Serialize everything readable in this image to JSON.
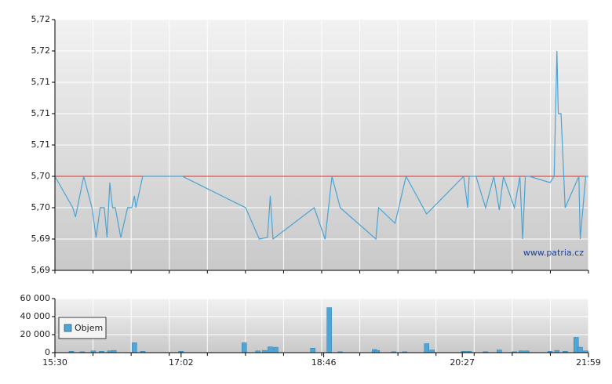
{
  "chart_data": [
    {
      "type": "line",
      "annotation": "www.patria.cz",
      "x": [
        "15:30",
        "15:43",
        "15:45",
        "15:51",
        "15:57",
        "16:00",
        "16:03",
        "16:06",
        "16:08",
        "16:10",
        "16:12",
        "16:14",
        "16:18",
        "16:23",
        "16:26",
        "16:28",
        "16:29",
        "16:34",
        "17:03",
        "17:49",
        "17:59",
        "18:05",
        "18:07",
        "18:09",
        "18:39",
        "18:47",
        "18:52",
        "18:58",
        "19:24",
        "19:26",
        "19:38",
        "19:46",
        "20:01",
        "20:28",
        "20:31",
        "20:32",
        "20:37",
        "20:44",
        "20:50",
        "20:54",
        "20:57",
        "21:05",
        "21:09",
        "21:11",
        "21:13",
        "21:16",
        "21:31",
        "21:34",
        "21:36",
        "21:37",
        "21:39",
        "21:42",
        "21:52",
        "21:53",
        "21:57",
        "21:59"
      ],
      "series": [
        {
          "color": "#4aa3d3",
          "values": [
            5.702,
            5.698,
            5.6968,
            5.702,
            5.698,
            5.6942,
            5.698,
            5.698,
            5.6942,
            5.7012,
            5.698,
            5.698,
            5.6942,
            5.698,
            5.698,
            5.6995,
            5.698,
            5.702,
            5.702,
            5.698,
            5.694,
            5.6942,
            5.6995,
            5.694,
            5.698,
            5.694,
            5.702,
            5.698,
            5.694,
            5.698,
            5.696,
            5.702,
            5.6972,
            5.702,
            5.698,
            5.702,
            5.702,
            5.698,
            5.702,
            5.6977,
            5.702,
            5.698,
            5.702,
            5.694,
            5.702,
            5.702,
            5.7012,
            5.702,
            5.718,
            5.71,
            5.71,
            5.698,
            5.702,
            5.694,
            5.702,
            5.702
          ]
        }
      ],
      "reference_line": 5.702,
      "reference_color": "#e03030",
      "xlim": [
        "15:30",
        "21:59"
      ],
      "ylim": [
        5.69,
        5.722
      ],
      "yticks": [
        {
          "value": 5.69,
          "label": "5,69"
        },
        {
          "value": 5.694,
          "label": "5,69"
        },
        {
          "value": 5.698,
          "label": "5,70"
        },
        {
          "value": 5.702,
          "label": "5,70"
        },
        {
          "value": 5.706,
          "label": "5,71"
        },
        {
          "value": 5.71,
          "label": "5,71"
        },
        {
          "value": 5.714,
          "label": "5,71"
        },
        {
          "value": 5.718,
          "label": "5,72"
        },
        {
          "value": 5.722,
          "label": "5,72"
        }
      ],
      "grid": true
    },
    {
      "type": "bar",
      "legend": "top-left",
      "x": [
        "15:42",
        "15:50",
        "15:58",
        "16:04",
        "16:10",
        "16:13",
        "16:28",
        "16:34",
        "17:02",
        "17:48",
        "17:58",
        "18:03",
        "18:07",
        "18:11",
        "18:38",
        "18:50",
        "18:58",
        "19:23",
        "19:25",
        "19:37",
        "19:45",
        "20:01",
        "20:05",
        "20:28",
        "20:32",
        "20:44",
        "20:54",
        "21:05",
        "21:10",
        "21:14",
        "21:31",
        "21:36",
        "21:42",
        "21:50",
        "21:53",
        "21:57"
      ],
      "series": [
        {
          "name": "Objem",
          "color": "#4da6d8",
          "values": [
            1500,
            1000,
            2000,
            1500,
            2000,
            2500,
            11000,
            1500,
            1500,
            11000,
            2000,
            2500,
            6500,
            6000,
            5000,
            50000,
            1000,
            3500,
            2500,
            1000,
            1000,
            10000,
            3000,
            1500,
            1500,
            1000,
            3000,
            1000,
            2000,
            2000,
            1500,
            2500,
            1500,
            17000,
            6000,
            2000
          ]
        }
      ],
      "xlim": [
        "15:30",
        "21:59"
      ],
      "xticks": [
        "15:30",
        "17:02",
        "18:46",
        "20:27",
        "21:59"
      ],
      "ylim": [
        0,
        60000
      ],
      "yticks": [
        0,
        {
          "value": 20000,
          "label": "20 000"
        },
        {
          "value": 40000,
          "label": "40 000"
        },
        {
          "value": 60000,
          "label": "60 000"
        }
      ],
      "grid": true
    }
  ]
}
